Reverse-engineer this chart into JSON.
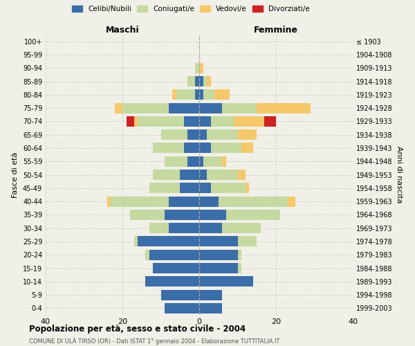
{
  "age_groups_bottom_to_top": [
    "0-4",
    "5-9",
    "10-14",
    "15-19",
    "20-24",
    "25-29",
    "30-34",
    "35-39",
    "40-44",
    "45-49",
    "50-54",
    "55-59",
    "60-64",
    "65-69",
    "70-74",
    "75-79",
    "80-84",
    "85-89",
    "90-94",
    "95-99",
    "100+"
  ],
  "birth_years_bottom_to_top": [
    "1999-2003",
    "1994-1998",
    "1989-1993",
    "1984-1988",
    "1979-1983",
    "1974-1978",
    "1969-1973",
    "1964-1968",
    "1959-1963",
    "1954-1958",
    "1949-1953",
    "1944-1948",
    "1939-1943",
    "1934-1938",
    "1929-1933",
    "1924-1928",
    "1919-1923",
    "1914-1918",
    "1909-1913",
    "1904-1908",
    "≤ 1903"
  ],
  "maschi": {
    "celibi": [
      9,
      10,
      14,
      12,
      13,
      16,
      8,
      9,
      8,
      5,
      5,
      3,
      4,
      3,
      4,
      8,
      1,
      1,
      0,
      0,
      0
    ],
    "coniugati": [
      0,
      0,
      0,
      0,
      1,
      1,
      5,
      9,
      15,
      8,
      7,
      6,
      8,
      7,
      12,
      12,
      5,
      2,
      1,
      0,
      0
    ],
    "vedovi": [
      0,
      0,
      0,
      0,
      0,
      0,
      0,
      0,
      1,
      0,
      0,
      0,
      0,
      0,
      1,
      2,
      1,
      0,
      0,
      0,
      0
    ],
    "divorziati": [
      0,
      0,
      0,
      0,
      0,
      0,
      0,
      0,
      0,
      0,
      0,
      0,
      0,
      0,
      2,
      0,
      0,
      0,
      0,
      0,
      0
    ]
  },
  "femmine": {
    "nubili": [
      6,
      6,
      14,
      10,
      10,
      10,
      6,
      7,
      5,
      3,
      2,
      1,
      3,
      2,
      3,
      6,
      1,
      1,
      0,
      0,
      0
    ],
    "coniugate": [
      0,
      0,
      0,
      1,
      1,
      5,
      10,
      14,
      18,
      9,
      8,
      5,
      8,
      8,
      6,
      9,
      3,
      1,
      0,
      0,
      0
    ],
    "vedove": [
      0,
      0,
      0,
      0,
      0,
      0,
      0,
      0,
      2,
      1,
      2,
      1,
      3,
      5,
      8,
      14,
      4,
      1,
      1,
      0,
      0
    ],
    "divorziate": [
      0,
      0,
      0,
      0,
      0,
      0,
      0,
      0,
      0,
      0,
      0,
      0,
      0,
      0,
      3,
      0,
      0,
      0,
      0,
      0,
      0
    ]
  },
  "colors": {
    "celibi_nubili": "#3b6ea8",
    "coniugati": "#c5d9a0",
    "vedovi": "#f5c96b",
    "divorziati": "#cc2222"
  },
  "xlim": 40,
  "title": "Popolazione per età, sesso e stato civile - 2004",
  "subtitle": "COMUNE DI ULÀ TIRSO (OR) - Dati ISTAT 1° gennaio 2004 - Elaborazione TUTTITALIA.IT",
  "ylabel_left": "Fasce di età",
  "ylabel_right": "Anni di nascita",
  "header_left": "Maschi",
  "header_right": "Femmine",
  "legend_labels": [
    "Celibi/Nubili",
    "Coniugati/e",
    "Vedovi/e",
    "Divorziati/e"
  ],
  "background_color": "#f0f0e8",
  "grid_color": "#cccccc"
}
